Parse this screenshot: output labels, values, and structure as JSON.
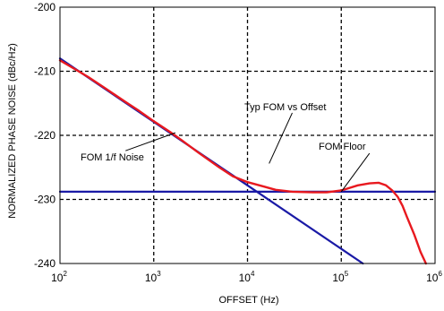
{
  "chart_data": {
    "type": "line",
    "xlabel": "OFFSET (Hz)",
    "ylabel": "NORMALIZED PHASE NOISE (dBc/Hz)",
    "xscale": "log",
    "xlim": [
      100,
      1000000
    ],
    "ylim": [
      -240,
      -200
    ],
    "grid": true,
    "grid_style": "dashed",
    "x_ticks": [
      {
        "base": "10",
        "exp": "2"
      },
      {
        "base": "10",
        "exp": "3"
      },
      {
        "base": "10",
        "exp": "4"
      },
      {
        "base": "10",
        "exp": "5"
      },
      {
        "base": "10",
        "exp": "6"
      }
    ],
    "y_ticks": [
      "-200",
      "-210",
      "-220",
      "-230",
      "-240"
    ],
    "y_tick_values": [
      -200,
      -210,
      -220,
      -230,
      -240
    ],
    "series": [
      {
        "color": "#e8191f",
        "x": [
          100,
          150,
          200,
          300,
          500,
          700,
          1000,
          1500,
          2000,
          3000,
          5000,
          7000,
          10000,
          15000,
          20000,
          30000,
          50000,
          70000,
          100000,
          150000,
          200000,
          250000,
          300000,
          350000,
          400000,
          450000,
          500000,
          600000,
          700000,
          800000
        ],
        "y": [
          -208.3,
          -209.8,
          -210.9,
          -212.6,
          -214.8,
          -216.2,
          -217.8,
          -219.5,
          -220.8,
          -222.7,
          -225.0,
          -226.4,
          -227.3,
          -228.0,
          -228.5,
          -228.8,
          -228.9,
          -228.9,
          -228.6,
          -227.8,
          -227.5,
          -227.4,
          -227.8,
          -228.6,
          -229.6,
          -231.0,
          -232.7,
          -235.5,
          -238.2,
          -240.0
        ]
      },
      {
        "color": "#1a1aa6",
        "x": [
          100,
          170000
        ],
        "y": [
          -208.0,
          -240.0
        ]
      },
      {
        "color": "#1a1aa6",
        "x": [
          100,
          1000000
        ],
        "y": [
          -228.8,
          -228.8
        ]
      }
    ],
    "annotations": [
      {
        "text": "Typ FOM vs Offset",
        "pointer_from": [
          30000,
          -216.5
        ],
        "pointer_to": [
          17000,
          -224.4
        ]
      },
      {
        "text": "FOM 1/f Noise",
        "pointer_from": [
          500,
          -222.4
        ],
        "pointer_to": [
          1700,
          -219.6
        ]
      },
      {
        "text": "FOM Floor",
        "pointer_from": [
          200000,
          -222.8
        ],
        "pointer_to": [
          100000,
          -228.8
        ]
      }
    ]
  }
}
